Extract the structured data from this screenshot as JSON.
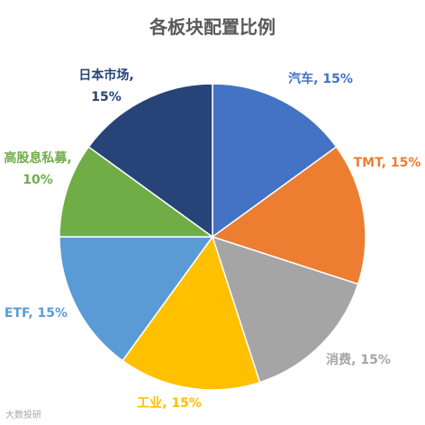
{
  "chart_data": {
    "type": "pie",
    "title": "各板块配置比例",
    "slices": [
      {
        "label": "汽车",
        "value": 15,
        "display": "汽车, 15%",
        "color": "#4472C4"
      },
      {
        "label": "TMT",
        "value": 15,
        "display": "TMT, 15%",
        "color": "#ED7D31"
      },
      {
        "label": "消费",
        "value": 15,
        "display": "消费, 15%",
        "color": "#A5A5A5"
      },
      {
        "label": "工业",
        "value": 15,
        "display": "工业, 15%",
        "color": "#FFC000"
      },
      {
        "label": "ETF",
        "value": 15,
        "display": "ETF, 15%",
        "color": "#5B9BD5"
      },
      {
        "label": "高股息私募",
        "value": 10,
        "display": "高股息私募, 10%",
        "color": "#70AD47"
      },
      {
        "label": "日本市场",
        "value": 15,
        "display": "日本市场, 15%",
        "color": "#264478"
      }
    ],
    "legend": "none",
    "data_labels": "outside"
  },
  "watermark": "大数投研"
}
